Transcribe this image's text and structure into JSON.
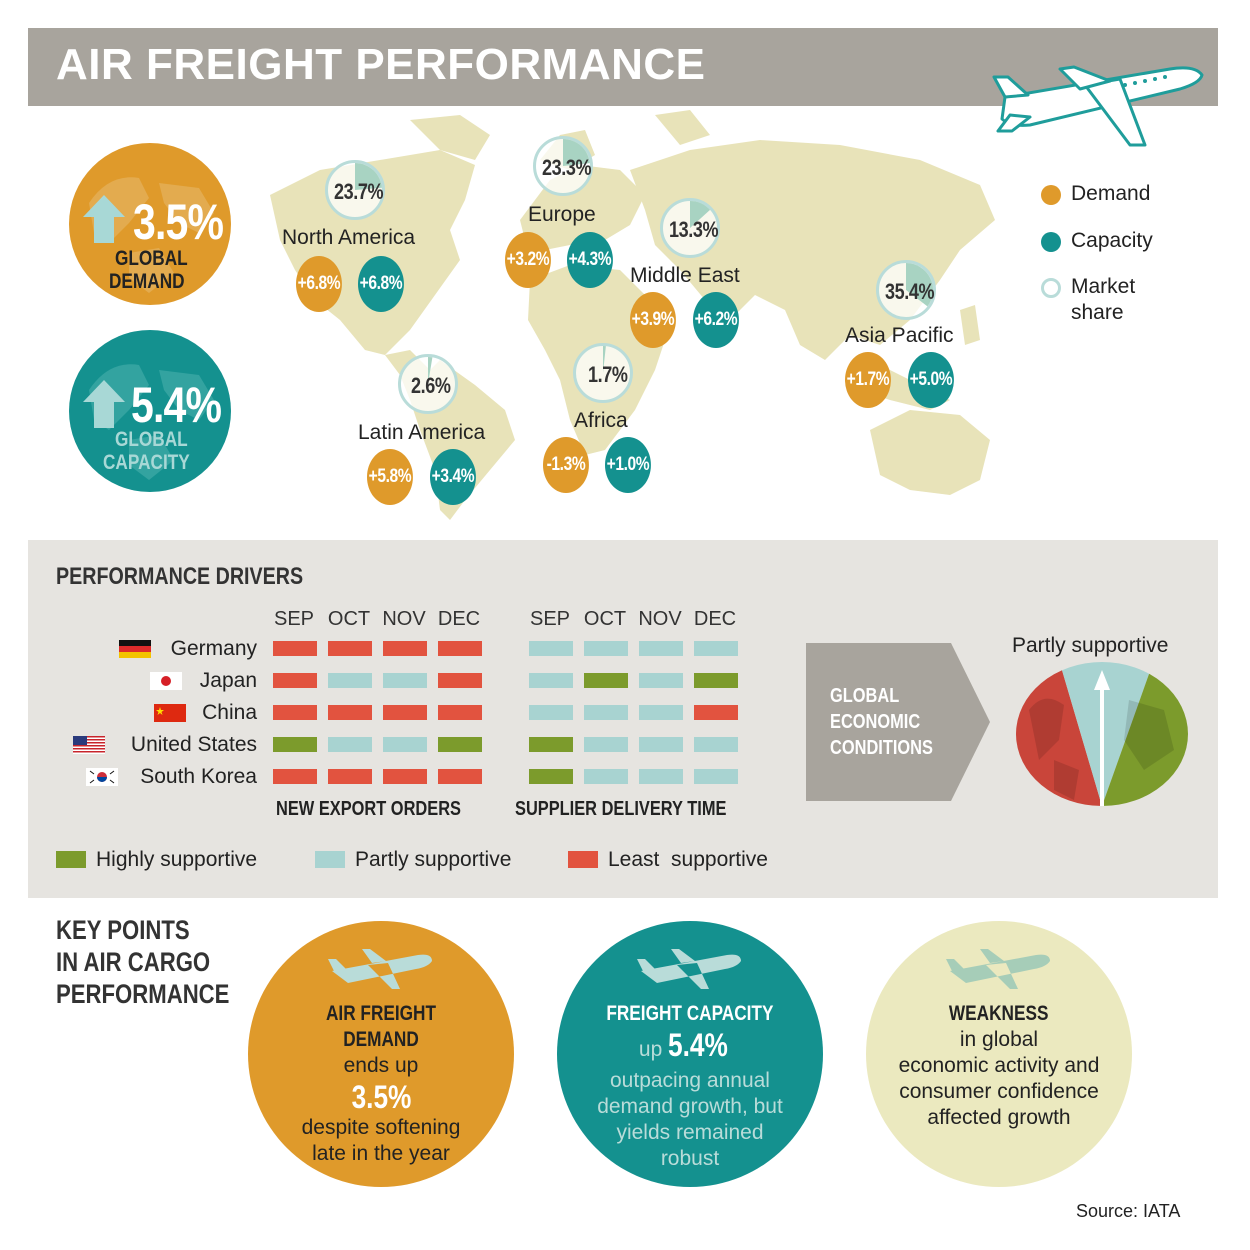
{
  "header": {
    "title": "AIR FREIGHT PERFORMANCE"
  },
  "global": {
    "demand": {
      "value": "3.5%",
      "label_line1": "GLOBAL",
      "label_line2": "DEMAND",
      "color": "#df9a2b"
    },
    "capacity": {
      "value": "5.4%",
      "label_line1": "GLOBAL",
      "label_line2": "CAPACITY",
      "color": "#14918f"
    }
  },
  "regions": [
    {
      "name": "North America",
      "share": "23.7%",
      "share_fraction": 0.237,
      "demand": "+6.8%",
      "capacity": "+6.8%"
    },
    {
      "name": "Europe",
      "share": "23.3%",
      "share_fraction": 0.233,
      "demand": "+3.2%",
      "capacity": "+4.3%"
    },
    {
      "name": "Middle East",
      "share": "13.3%",
      "share_fraction": 0.133,
      "demand": "+3.9%",
      "capacity": "+6.2%"
    },
    {
      "name": "Asia Pacific",
      "share": "35.4%",
      "share_fraction": 0.354,
      "demand": "+1.7%",
      "capacity": "+5.0%"
    },
    {
      "name": "Latin America",
      "share": "2.6%",
      "share_fraction": 0.026,
      "demand": "+5.8%",
      "capacity": "+3.4%"
    },
    {
      "name": "Africa",
      "share": "1.7%",
      "share_fraction": 0.017,
      "demand": "-1.3%",
      "capacity": "+1.0%"
    }
  ],
  "legend": {
    "demand": "Demand",
    "capacity": "Capacity",
    "share_line1": "Market",
    "share_line2": "share"
  },
  "drivers": {
    "title": "PERFORMANCE DRIVERS",
    "months": [
      "SEP",
      "OCT",
      "NOV",
      "DEC"
    ],
    "countries": [
      {
        "name": "Germany",
        "flag": "germany-flag",
        "export": [
          "least",
          "least",
          "least",
          "least"
        ],
        "delivery": [
          "partly",
          "partly",
          "partly",
          "partly"
        ]
      },
      {
        "name": "Japan",
        "flag": "japan-flag",
        "export": [
          "least",
          "partly",
          "partly",
          "least"
        ],
        "delivery": [
          "partly",
          "highly",
          "partly",
          "highly"
        ]
      },
      {
        "name": "China",
        "flag": "china-flag",
        "export": [
          "least",
          "least",
          "least",
          "least"
        ],
        "delivery": [
          "partly",
          "partly",
          "partly",
          "least"
        ]
      },
      {
        "name": "United States",
        "flag": "usa-flag",
        "export": [
          "highly",
          "partly",
          "partly",
          "highly"
        ],
        "delivery": [
          "highly",
          "partly",
          "partly",
          "partly"
        ]
      },
      {
        "name": "South Korea",
        "flag": "korea-flag",
        "export": [
          "least",
          "least",
          "least",
          "least"
        ],
        "delivery": [
          "highly",
          "partly",
          "partly",
          "partly"
        ]
      }
    ],
    "export_label": "NEW EXPORT ORDERS",
    "delivery_label": "SUPPLIER DELIVERY TIME",
    "arrow_line1": "GLOBAL",
    "arrow_line2": "ECONOMIC",
    "arrow_line3": "CONDITIONS",
    "gauge_label": "Partly supportive",
    "legend": {
      "highly": "Highly supportive",
      "partly": "Partly supportive",
      "least": "Least  supportive"
    },
    "colors": {
      "highly": "#7c9b2c",
      "partly": "#a8d3d1",
      "least": "#e2533f"
    }
  },
  "key_points": {
    "title_line1": "KEY POINTS",
    "title_line2": "IN AIR CARGO",
    "title_line3": "PERFORMANCE",
    "demand": {
      "head": "AIR FREIGHT DEMAND",
      "l1": "ends up",
      "big": "3.5%",
      "l2": "despite softening",
      "l3": "late in the year"
    },
    "capacity": {
      "head": "FREIGHT CAPACITY",
      "pre": "up",
      "big": "5.4%",
      "l1": "outpacing annual",
      "l2": "demand growth, but",
      "l3": "yields remained",
      "l4": "robust"
    },
    "weakness": {
      "head": "WEAKNESS",
      "l1": "in global",
      "l2": "economic activity and",
      "l3": "consumer confidence",
      "l4": "affected growth"
    }
  },
  "source": "Source: IATA"
}
